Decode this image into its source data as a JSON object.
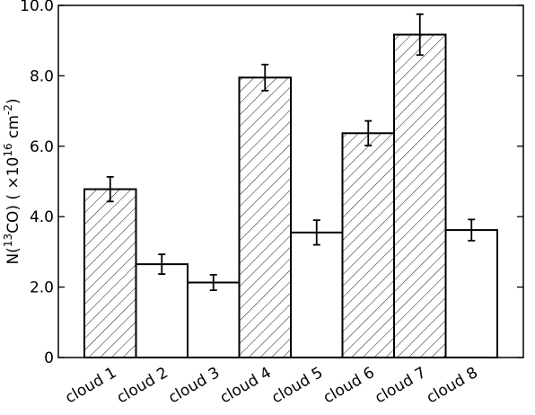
{
  "chart_data": {
    "type": "bar",
    "title": "",
    "xlabel": "",
    "ylabel": "N(13CO) ( × 10^16 cm^-2)",
    "ylabel_parts": {
      "pre": "N(",
      "iso": "13",
      "mol": "CO) (",
      "times": "×",
      "base": "10",
      "exp": "16",
      "unit": "cm",
      "unit_exp": "-2",
      "close": ")"
    },
    "ylim": [
      0,
      10
    ],
    "yticks": [
      0,
      2,
      4,
      6,
      8,
      10
    ],
    "ytick_labels": [
      "0",
      "2.0",
      "4.0",
      "6.0",
      "8.0",
      "10.0"
    ],
    "categories": [
      "cloud 1",
      "cloud 2",
      "cloud 3",
      "cloud 4",
      "cloud 5",
      "cloud 6",
      "cloud 7",
      "cloud 8"
    ],
    "values": [
      4.78,
      2.65,
      2.13,
      7.95,
      3.55,
      6.37,
      9.17,
      3.62
    ],
    "errors": [
      0.35,
      0.28,
      0.22,
      0.37,
      0.35,
      0.35,
      0.58,
      0.3
    ],
    "hatched": [
      true,
      false,
      false,
      true,
      false,
      true,
      true,
      false
    ],
    "grid": false,
    "colors": {
      "bar_fill": "#ffffff",
      "bar_edge": "#000000",
      "hatch": "#000000"
    }
  }
}
